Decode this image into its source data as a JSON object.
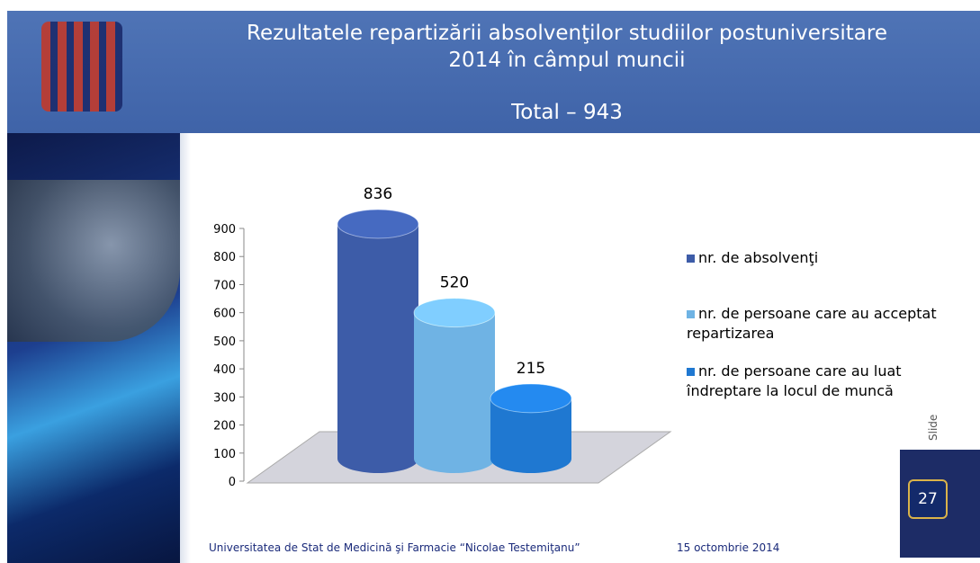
{
  "chart_data": {
    "type": "bar",
    "title": "Rezultatele repartizării absolvenţilor studiilor postuniversitare 2014 în câmpul muncii",
    "subtitle": "Total – 943",
    "series": [
      {
        "name": "nr. de absolvenţi",
        "color": "#3d5ca8",
        "values": [
          836
        ]
      },
      {
        "name": "nr. de persoane care au acceptat repartizarea",
        "color": "#6fb3e4",
        "values": [
          520
        ]
      },
      {
        "name": "nr. de persoane care au luat îndreptare la locul de muncă",
        "color": "#1f78d1",
        "values": [
          215
        ]
      }
    ],
    "ylim": [
      0,
      900
    ],
    "yticks": [
      0,
      100,
      200,
      300,
      400,
      500,
      600,
      700,
      800,
      900
    ],
    "legend": "right"
  },
  "footer": {
    "university": "Universitatea de Stat de Medicină şi Farmacie “Nicolae Testemiţanu”",
    "date": "15 octombrie 2014",
    "slide_label": "Slide",
    "slide_number": "27"
  }
}
